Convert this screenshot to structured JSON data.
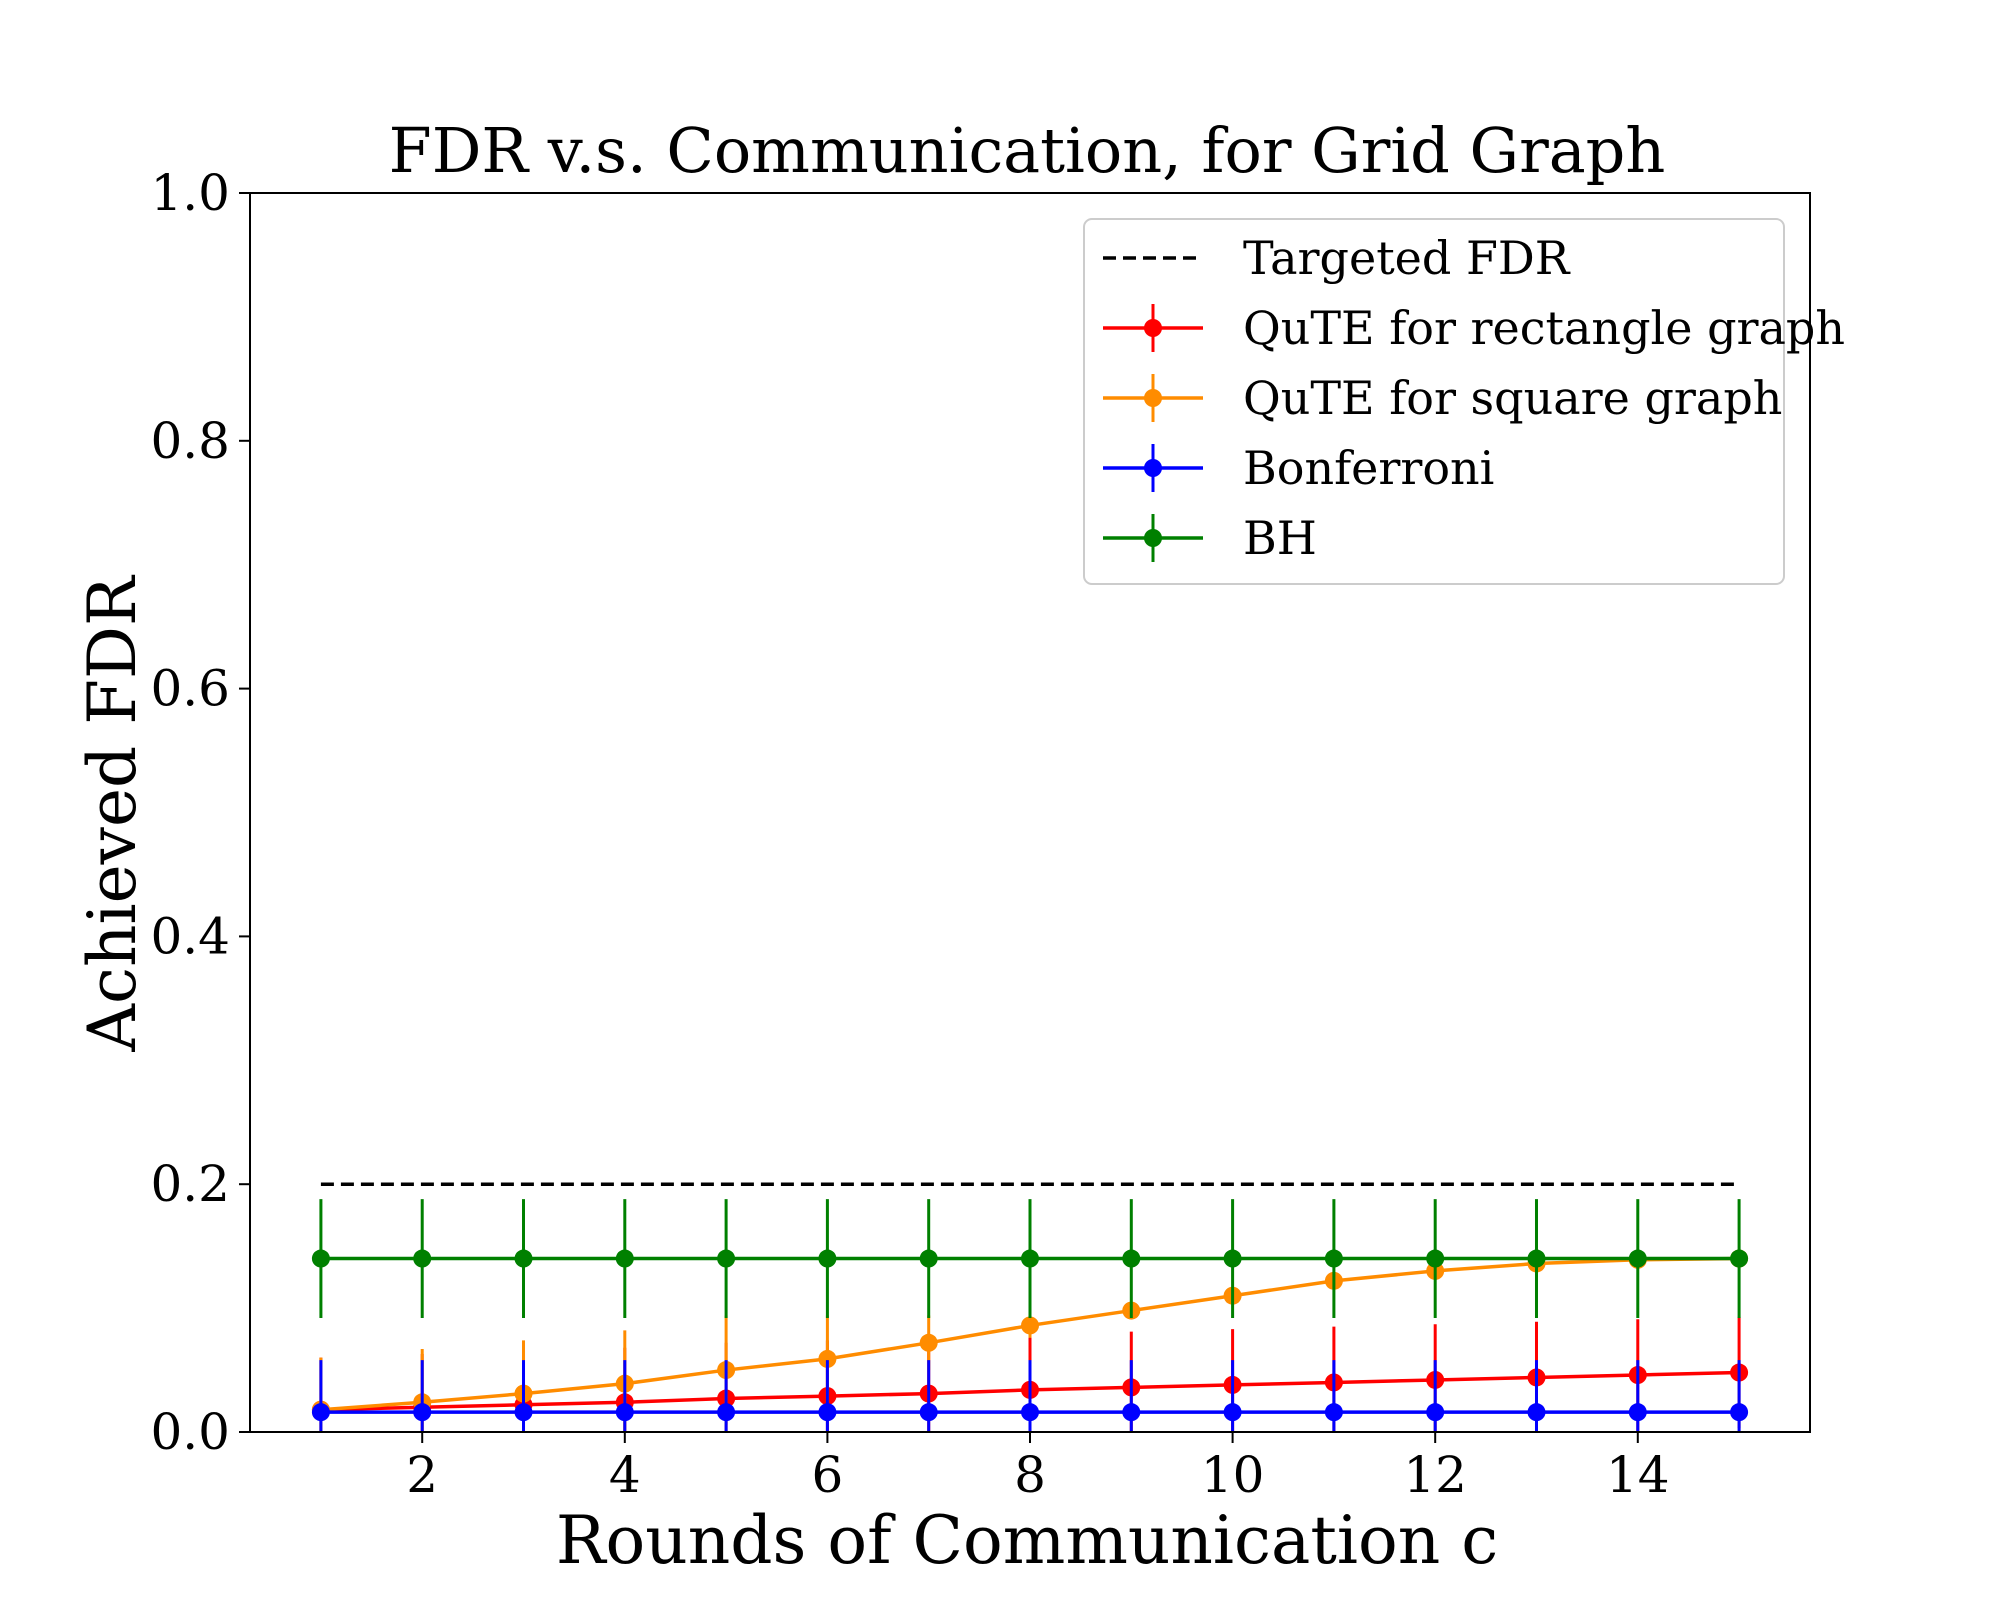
{
  "chart_data": {
    "type": "line",
    "title": "FDR v.s. Communication, for Grid Graph",
    "xlabel": "Rounds of Communication c",
    "ylabel": "Achieved FDR",
    "xlim": [
      0.3,
      15.7
    ],
    "ylim": [
      0.0,
      1.0
    ],
    "xticks": [
      2,
      4,
      6,
      8,
      10,
      12,
      14
    ],
    "yticks": [
      0.0,
      0.2,
      0.4,
      0.6,
      0.8,
      1.0
    ],
    "xtick_labels": [
      "2",
      "4",
      "6",
      "8",
      "10",
      "12",
      "14"
    ],
    "ytick_labels": [
      "0.0",
      "0.2",
      "0.4",
      "0.6",
      "0.8",
      "1.0"
    ],
    "grid": false,
    "legend_position": "top-right",
    "x": [
      1,
      2,
      3,
      4,
      5,
      6,
      7,
      8,
      9,
      10,
      11,
      12,
      13,
      14,
      15
    ],
    "target": {
      "name": "Targeted FDR",
      "value": 0.2,
      "color": "#000000",
      "style": "dashed"
    },
    "series": [
      {
        "name": "QuTE for rectangle graph",
        "color": "#ff0000",
        "values": [
          0.018,
          0.02,
          0.022,
          0.024,
          0.027,
          0.029,
          0.031,
          0.034,
          0.036,
          0.038,
          0.04,
          0.042,
          0.044,
          0.046,
          0.048
        ],
        "err": [
          0.042,
          0.043,
          0.044,
          0.044,
          0.045,
          0.045,
          0.045,
          0.045,
          0.045,
          0.045,
          0.045,
          0.045,
          0.045,
          0.045,
          0.045
        ]
      },
      {
        "name": "QuTE for square graph",
        "color": "#ff8c00",
        "values": [
          0.018,
          0.024,
          0.031,
          0.039,
          0.05,
          0.059,
          0.072,
          0.086,
          0.098,
          0.11,
          0.122,
          0.13,
          0.136,
          0.139,
          0.14
        ],
        "err": [
          0.042,
          0.043,
          0.043,
          0.043,
          0.044,
          0.035,
          0.022,
          0.01,
          0.0,
          0.0,
          0.0,
          0.0,
          0.0,
          0.0,
          0.0
        ]
      },
      {
        "name": "Bonferroni",
        "color": "#0000ff",
        "values": [
          0.016,
          0.016,
          0.016,
          0.016,
          0.016,
          0.016,
          0.016,
          0.016,
          0.016,
          0.016,
          0.016,
          0.016,
          0.016,
          0.016,
          0.016
        ],
        "err": [
          0.042,
          0.042,
          0.042,
          0.042,
          0.042,
          0.042,
          0.042,
          0.042,
          0.042,
          0.042,
          0.042,
          0.042,
          0.042,
          0.042,
          0.042
        ]
      },
      {
        "name": "BH",
        "color": "#008000",
        "values": [
          0.14,
          0.14,
          0.14,
          0.14,
          0.14,
          0.14,
          0.14,
          0.14,
          0.14,
          0.14,
          0.14,
          0.14,
          0.14,
          0.14,
          0.14
        ],
        "err": [
          0.048,
          0.048,
          0.048,
          0.048,
          0.048,
          0.048,
          0.048,
          0.048,
          0.048,
          0.048,
          0.048,
          0.048,
          0.048,
          0.048,
          0.048
        ]
      }
    ]
  }
}
